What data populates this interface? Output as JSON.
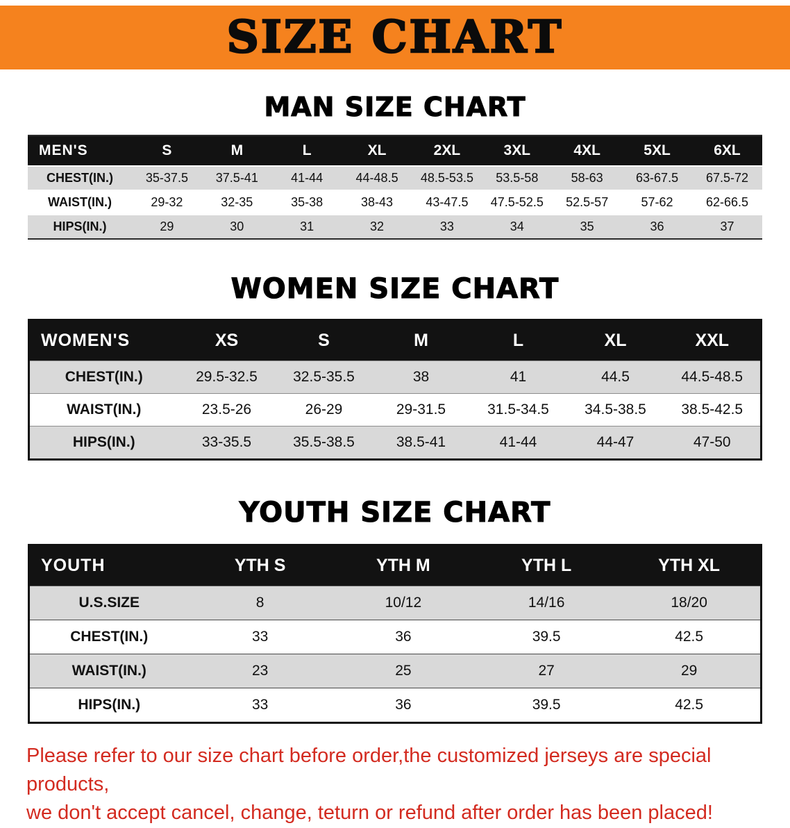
{
  "banner": {
    "title": "SIZE CHART"
  },
  "sections": [
    {
      "id": "men",
      "heading": "MAN SIZE CHART",
      "header_label": "MEN'S",
      "columns": [
        "S",
        "M",
        "L",
        "XL",
        "2XL",
        "3XL",
        "4XL",
        "5XL",
        "6XL"
      ],
      "rows": [
        {
          "label": "CHEST(IN.)",
          "values": [
            "35-37.5",
            "37.5-41",
            "41-44",
            "44-48.5",
            "48.5-53.5",
            "53.5-58",
            "58-63",
            "63-67.5",
            "67.5-72"
          ]
        },
        {
          "label": "WAIST(IN.)",
          "values": [
            "29-32",
            "32-35",
            "35-38",
            "38-43",
            "43-47.5",
            "47.5-52.5",
            "52.5-57",
            "57-62",
            "62-66.5"
          ]
        },
        {
          "label": "HIPS(IN.)",
          "values": [
            "29",
            "30",
            "31",
            "32",
            "33",
            "34",
            "35",
            "36",
            "37"
          ]
        }
      ]
    },
    {
      "id": "women",
      "heading": "WOMEN SIZE CHART",
      "header_label": "WOMEN'S",
      "columns": [
        "XS",
        "S",
        "M",
        "L",
        "XL",
        "XXL"
      ],
      "rows": [
        {
          "label": "CHEST(IN.)",
          "values": [
            "29.5-32.5",
            "32.5-35.5",
            "38",
            "41",
            "44.5",
            "44.5-48.5"
          ]
        },
        {
          "label": "WAIST(IN.)",
          "values": [
            "23.5-26",
            "26-29",
            "29-31.5",
            "31.5-34.5",
            "34.5-38.5",
            "38.5-42.5"
          ]
        },
        {
          "label": "HIPS(IN.)",
          "values": [
            "33-35.5",
            "35.5-38.5",
            "38.5-41",
            "41-44",
            "44-47",
            "47-50"
          ]
        }
      ]
    },
    {
      "id": "youth",
      "heading": "YOUTH SIZE CHART",
      "header_label": "YOUTH",
      "columns": [
        "YTH S",
        "YTH M",
        "YTH L",
        "YTH XL"
      ],
      "rows": [
        {
          "label": "U.S.SIZE",
          "values": [
            "8",
            "10/12",
            "14/16",
            "18/20"
          ]
        },
        {
          "label": "CHEST(IN.)",
          "values": [
            "33",
            "36",
            "39.5",
            "42.5"
          ]
        },
        {
          "label": "WAIST(IN.)",
          "values": [
            "23",
            "25",
            "27",
            "29"
          ]
        },
        {
          "label": "HIPS(IN.)",
          "values": [
            "33",
            "36",
            "39.5",
            "42.5"
          ]
        }
      ]
    }
  ],
  "disclaimer": {
    "line1": "Please refer to our size chart before order,the customized jerseys are special products,",
    "line2": "we don't accept cancel, change, teturn or refund after order has been placed!"
  },
  "colors": {
    "banner_bg": "#f5821e",
    "header_bg": "#121212",
    "row_alt_bg": "#d9d9d9",
    "disclaimer_red": "#d32b20"
  }
}
